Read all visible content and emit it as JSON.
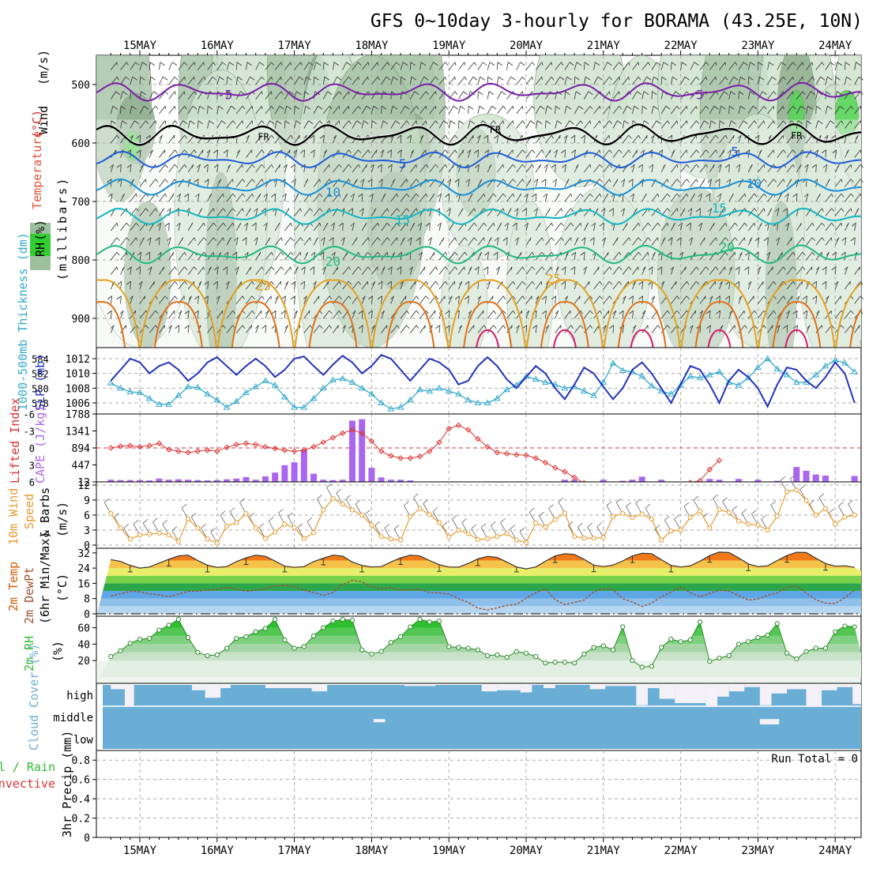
{
  "title": "GFS 0~10day 3-hourly for BORAMA (43.25E, 10N)",
  "colors": {
    "wind": "#4b4b4b",
    "temperature": "#cc3333",
    "rh": "#33cc33",
    "thickness": "#33aacc",
    "slp": "#2233bb",
    "cape": "#aa66ee",
    "lifted": "#dd3333",
    "wind10m": "#e89a2e",
    "temp2m": "#d65a00",
    "dewpt": "#a05030",
    "rh2m": "#33bb33",
    "cloud": "#6aaed6",
    "frz": "#000000"
  },
  "chart_data": [
    {
      "type": "line",
      "panel": "upper-air",
      "x_ticks": [
        "15MAY",
        "16MAY",
        "17MAY",
        "18MAY",
        "19MAY",
        "20MAY",
        "21MAY",
        "22MAY",
        "23MAY",
        "24MAY"
      ],
      "ylim": [
        950,
        450
      ],
      "y_ticks": [
        500,
        600,
        700,
        800,
        900
      ],
      "ylabel_parts": [
        "Wind",
        "(m/s)",
        "Temperature",
        "(°C)",
        "(millibars)",
        "RH",
        "(%)"
      ],
      "freezing_label": "FR",
      "isotherm_labels": [
        {
          "label": "-5",
          "day": 1.1,
          "level": 525
        },
        {
          "label": "-5",
          "day": 7.2,
          "level": 525
        },
        {
          "label": "FR",
          "day": 1.6,
          "level": 595
        },
        {
          "label": "FR",
          "day": 4.6,
          "level": 583
        },
        {
          "label": "FR",
          "day": 8.5,
          "level": 593
        },
        {
          "label": "5",
          "day": 3.4,
          "level": 643
        },
        {
          "label": "5",
          "day": 7.7,
          "level": 622
        },
        {
          "label": "10",
          "day": 2.5,
          "level": 692
        },
        {
          "label": "10",
          "day": 7.95,
          "level": 677
        },
        {
          "label": "15",
          "day": 3.4,
          "level": 739
        },
        {
          "label": "15",
          "day": 7.5,
          "level": 719
        },
        {
          "label": "20",
          "day": 2.5,
          "level": 810
        },
        {
          "label": "20",
          "day": 7.6,
          "level": 786
        },
        {
          "label": "25",
          "day": 1.6,
          "level": 852
        },
        {
          "label": "25",
          "day": 5.35,
          "level": 840
        }
      ],
      "rh_contour_labels": [
        "30",
        "10"
      ]
    },
    {
      "type": "line",
      "panel": "thickness-slp",
      "ylabel_left": "1000-500mb Thickness (dm)",
      "ylabel_right": "SLP (mb)",
      "thickness_ticks": [
        584,
        582,
        580,
        578
      ],
      "slp_ticks": [
        1012,
        1010,
        1008,
        1006
      ],
      "slp_ylim": [
        1004.5,
        1013.5
      ],
      "slp": [
        1009.0,
        1010.5,
        1012.0,
        1011.5,
        1010.0,
        1011.0,
        1011.5,
        1010.5,
        1009.0,
        1010.0,
        1011.5,
        1012.2,
        1011.0,
        1009.8,
        1011.0,
        1012.0,
        1011.0,
        1009.5,
        1010.5,
        1012.0,
        1012.3,
        1011.0,
        1009.8,
        1011.2,
        1012.4,
        1011.5,
        1010.0,
        1011.0,
        1012.5,
        1012.0,
        1010.5,
        1009.0,
        1010.5,
        1012.0,
        1011.5,
        1010.5,
        1008.5,
        1009.0,
        1011.0,
        1012.2,
        1011.0,
        1009.2,
        1008.0,
        1009.5,
        1011.0,
        1010.0,
        1008.0,
        1006.5,
        1008.5,
        1010.8,
        1010.0,
        1008.2,
        1006.5,
        1008.0,
        1010.5,
        1011.5,
        1010.0,
        1008.0,
        1006.0,
        1008.5,
        1011.0,
        1010.5,
        1008.5,
        1006.0,
        1009.0,
        1010.5,
        1009.5,
        1008.0,
        1005.5,
        1008.5,
        1010.8,
        1010.5,
        1009.0,
        1008.0,
        1009.5,
        1011.5,
        1010.0,
        1006.0,
        1007.0,
        1009.5
      ],
      "thickness": [
        1008.7,
        1008.0,
        1007.5,
        1007.4,
        1006.6,
        1005.8,
        1005.8,
        1007.0,
        1008.2,
        1008.1,
        1007.2,
        1006.4,
        1005.4,
        1006.2,
        1007.4,
        1008.2,
        1009.0,
        1008.4,
        1006.8,
        1005.4,
        1005.4,
        1006.6,
        1008.0,
        1009.1,
        1009.3,
        1008.8,
        1008.0,
        1007.2,
        1006.0,
        1005.2,
        1005.4,
        1006.4,
        1007.8,
        1007.6,
        1008.0,
        1007.6,
        1007.2,
        1006.4,
        1006.0,
        1006.0,
        1006.6,
        1007.8,
        1008.4,
        1009.6,
        1009.2,
        1008.8,
        1008.5,
        1008.0,
        1008.2,
        1007.6,
        1007.0,
        1008.8,
        1011.4,
        1010.4,
        1010.2,
        1009.6,
        1008.3,
        1007.6,
        1007.2,
        1008.4,
        1009.6,
        1009.4,
        1009.8,
        1010.2,
        1008.8,
        1008.4,
        1009.4,
        1010.8,
        1012.0,
        1010.6,
        1009.8,
        1008.8,
        1008.8,
        1009.8,
        1011.0,
        1011.8,
        1011.4,
        1010.2,
        1008.4,
        1008.8
      ]
    },
    {
      "type": "bar",
      "panel": "cape-lifted",
      "ylabel_left": "Lifted Index",
      "ylabel_right": "CAPE (J/kg)",
      "li_ticks": [
        "-6",
        "-3",
        "0",
        "3",
        "6"
      ],
      "cape_ticks": [
        1788,
        1341,
        894,
        447,
        12
      ],
      "cape_ylim": [
        0,
        1788
      ],
      "cape": [
        60,
        50,
        50,
        50,
        40,
        90,
        60,
        70,
        60,
        50,
        40,
        50,
        70,
        90,
        130,
        60,
        150,
        250,
        450,
        530,
        870,
        220,
        60,
        50,
        60,
        1650,
        1690,
        380,
        120,
        60,
        60,
        40,
        0,
        0,
        0,
        0,
        0,
        0,
        0,
        0,
        0,
        0,
        0,
        0,
        0,
        0,
        0,
        60,
        60,
        0,
        0,
        60,
        0,
        30,
        60,
        140,
        0,
        60,
        0,
        0,
        0,
        0,
        80,
        60,
        0,
        80,
        0,
        60,
        0,
        30,
        0,
        400,
        300,
        200,
        170,
        0,
        0,
        160,
        80,
        170
      ],
      "lifted_index": [
        0,
        -0.3,
        -0.4,
        -0.2,
        -0.4,
        -0.8,
        0.3,
        0.6,
        0.8,
        0.6,
        0.4,
        0.6,
        -0.1,
        -0.6,
        -0.8,
        -0.6,
        -0.2,
        0.1,
        0.4,
        0.6,
        0.4,
        -0.2,
        -1.0,
        -1.8,
        -2.6,
        -3.2,
        -2.6,
        -1.2,
        0.6,
        1.4,
        1.8,
        1.8,
        1.5,
        0.6,
        -1.0,
        -3.4,
        -4.0,
        -3.2,
        -1.6,
        -0.2,
        0.8,
        1.0,
        1.2,
        1.3,
        1.8,
        2.6,
        3.5,
        4.2,
        5.2,
        6.2,
        null,
        null,
        null,
        null,
        null,
        null,
        null,
        null,
        null,
        null,
        6.1,
        5.8,
        3.8,
        2.2,
        null,
        null,
        null,
        null,
        null,
        null,
        null,
        null,
        null,
        null,
        null,
        null,
        null,
        null,
        null,
        null
      ],
      "cape_trend": [
        {
          "day": 0.0,
          "value": 30
        },
        {
          "day": 1.0,
          "value": 80
        },
        {
          "day": 2.0,
          "value": 100
        },
        {
          "day": 2.6,
          "value": 400
        },
        {
          "day": 3.2,
          "value": 1400
        },
        {
          "day": 3.9,
          "value": 500
        },
        {
          "day": 4.5,
          "value": 80
        },
        {
          "day": 5.0,
          "value": 10
        }
      ]
    },
    {
      "type": "line",
      "panel": "wind10m",
      "ylabel": "10m Wind Speed & Barbs (m/s)",
      "y_ticks": [
        12,
        9,
        6,
        3,
        0
      ],
      "ylim": [
        0,
        12
      ],
      "values": [
        6.3,
        3.4,
        1.2,
        2.0,
        2.2,
        2.4,
        2.0,
        0.7,
        5.2,
        3.4,
        1.2,
        0.4,
        3.8,
        4.5,
        6.3,
        3.4,
        1.3,
        2.6,
        4.2,
        3.5,
        1.3,
        2.5,
        7.0,
        9.3,
        8.2,
        7.0,
        6.0,
        4.0,
        1.7,
        1.2,
        1.0,
        5.7,
        7.3,
        6.1,
        4.5,
        1.6,
        3.0,
        2.3,
        1.1,
        1.3,
        1.7,
        2.3,
        1.0,
        0.5,
        4.4,
        3.6,
        5.1,
        6.4,
        1.7,
        1.4,
        1.4,
        1.5,
        5.7,
        6.3,
        5.5,
        6.2,
        5.2,
        1.0,
        2.8,
        3.0,
        5.5,
        6.8,
        3.4,
        7.1,
        6.5,
        4.8,
        4.2,
        4.0,
        3.0,
        5.8,
        10.7,
        11.0,
        8.9,
        6.0,
        7.3,
        4.2,
        5.6,
        6.0,
        5.5,
        5.0
      ]
    },
    {
      "type": "area",
      "panel": "temp2m",
      "ylabel": "2m Temp 2m DewPt (6hr Min/Max) (°C)",
      "y_ticks": [
        32,
        24,
        16,
        8,
        0
      ],
      "ylim": [
        0,
        34
      ],
      "temp": [
        28.5,
        27.5,
        25.4,
        24.0,
        24.6,
        26.6,
        28.6,
        30.4,
        30.8,
        28.0,
        25.5,
        24.4,
        24.8,
        27.4,
        29.4,
        30.8,
        30.2,
        27.7,
        25.0,
        24.4,
        24.8,
        27.4,
        29.2,
        30.8,
        30.3,
        27.2,
        25.4,
        24.6,
        24.8,
        27.2,
        29.4,
        30.8,
        30.4,
        28.0,
        25.8,
        24.6,
        24.5,
        26.4,
        28.8,
        30.2,
        29.6,
        27.2,
        24.6,
        23.6,
        24.6,
        27.6,
        30.4,
        31.6,
        31.2,
        28.6,
        25.6,
        24.8,
        25.6,
        27.8,
        30.4,
        31.8,
        31.6,
        28.4,
        25.4,
        24.6,
        25.2,
        27.6,
        30.6,
        32.4,
        32.2,
        29.4,
        26.2,
        24.8,
        25.2,
        28.0,
        30.6,
        32.3,
        32.2,
        29.2,
        26.4,
        25.0,
        25.2,
        24.4,
        22.6,
        27.6
      ],
      "dewpt": [
        9.4,
        10.5,
        11.8,
        11.6,
        10.5,
        10.0,
        9.0,
        10.4,
        11.8,
        12.0,
        12.4,
        12.8,
        14.0,
        13.0,
        11.8,
        12.4,
        13.2,
        14.6,
        15.0,
        14.4,
        12.4,
        11.2,
        9.6,
        11.2,
        15.4,
        17.6,
        16.8,
        14.4,
        13.0,
        13.8,
        12.4,
        12.6,
        13.0,
        11.2,
        11.0,
        10.4,
        8.0,
        6.0,
        3.0,
        2.0,
        3.2,
        4.4,
        5.0,
        8.2,
        11.2,
        13.0,
        7.5,
        4.8,
        6.0,
        7.2,
        11.6,
        13.2,
        12.6,
        8.0,
        6.2,
        3.8,
        5.6,
        9.0,
        11.4,
        14.0,
        11.0,
        9.0,
        10.8,
        12.4,
        12.0,
        9.6,
        7.2,
        7.8,
        9.8,
        11.0,
        14.0,
        14.6,
        11.0,
        7.4,
        5.6,
        5.4,
        8.4,
        12.4,
        14.2,
        13.6
      ]
    },
    {
      "type": "area",
      "panel": "rh2m",
      "ylabel": "2m RH (%)",
      "y_ticks": [
        60,
        40,
        20
      ],
      "ylim": [
        0,
        72
      ],
      "values": [
        25,
        32,
        41,
        46,
        47,
        57,
        63,
        70,
        48,
        30,
        26,
        27,
        35,
        47,
        49,
        55,
        59,
        70,
        45,
        35,
        37,
        50,
        60,
        68,
        70,
        69,
        33,
        28,
        31,
        42,
        49,
        61,
        70,
        67,
        68,
        37,
        36,
        35,
        33,
        26,
        27,
        24,
        31,
        29,
        25,
        17,
        18,
        18,
        17,
        28,
        36,
        38,
        33,
        61,
        20,
        12,
        13,
        36,
        46,
        43,
        45,
        67,
        19,
        23,
        26,
        40,
        43,
        48,
        51,
        65,
        29,
        22,
        31,
        35,
        35,
        55,
        62,
        61,
        30,
        25
      ]
    },
    {
      "type": "bar",
      "panel": "cloud-cover",
      "ylabel": "Cloud Cover (%)",
      "levels": [
        "high",
        "middle",
        "low"
      ],
      "high_clear_fraction": [
        0.9,
        1,
        0,
        0,
        0,
        0,
        0,
        0,
        0,
        0,
        0,
        0,
        0,
        0,
        0,
        0,
        0,
        0,
        0,
        0,
        0,
        0,
        0,
        0,
        0,
        0,
        0,
        0,
        0,
        0,
        0,
        0,
        0,
        0,
        0,
        0,
        0,
        0,
        0,
        0,
        0,
        0,
        0,
        0,
        0,
        0,
        0,
        0,
        0,
        0,
        0,
        0,
        0,
        0,
        0,
        0,
        0,
        0,
        0,
        0,
        0,
        0,
        0,
        0,
        0,
        0,
        0,
        0,
        0,
        0,
        0,
        0,
        0,
        0,
        0,
        0,
        0,
        0,
        0,
        0
      ],
      "high_gap_segments": [
        {
          "day_start": 0.0,
          "day_end": 0.18,
          "fraction": 0.2
        },
        {
          "day_start": 0.18,
          "day_end": 0.3,
          "fraction": 1.0
        },
        {
          "day_start": 1.05,
          "day_end": 1.22,
          "fraction": 0.25
        },
        {
          "day_start": 1.22,
          "day_end": 1.42,
          "fraction": 0.6
        },
        {
          "day_start": 1.42,
          "day_end": 1.55,
          "fraction": 0.15
        },
        {
          "day_start": 2.0,
          "day_end": 2.6,
          "fraction": 0.15
        },
        {
          "day_start": 2.6,
          "day_end": 2.8,
          "fraction": 0.3
        },
        {
          "day_start": 3.8,
          "day_end": 4.2,
          "fraction": 0.05
        },
        {
          "day_start": 4.8,
          "day_end": 5.0,
          "fraction": 0.3
        },
        {
          "day_start": 5.0,
          "day_end": 5.3,
          "fraction": 0.25
        },
        {
          "day_start": 5.3,
          "day_end": 5.45,
          "fraction": 0.35
        },
        {
          "day_start": 5.6,
          "day_end": 5.75,
          "fraction": 0.15
        },
        {
          "day_start": 6.2,
          "day_end": 6.4,
          "fraction": 0.2
        },
        {
          "day_start": 6.4,
          "day_end": 6.8,
          "fraction": 0.05
        },
        {
          "day_start": 6.8,
          "day_end": 6.95,
          "fraction": 0.95
        },
        {
          "day_start": 6.95,
          "day_end": 7.1,
          "fraction": 0.15
        },
        {
          "day_start": 7.1,
          "day_end": 7.3,
          "fraction": 0.65
        },
        {
          "day_start": 7.3,
          "day_end": 7.7,
          "fraction": 0.85
        },
        {
          "day_start": 7.7,
          "day_end": 7.85,
          "fraction": 1.0
        },
        {
          "day_start": 7.85,
          "day_end": 8.0,
          "fraction": 0.55
        },
        {
          "day_start": 8.0,
          "day_end": 8.2,
          "fraction": 0.3
        },
        {
          "day_start": 8.2,
          "day_end": 8.4,
          "fraction": 0.1
        },
        {
          "day_start": 8.4,
          "day_end": 8.55,
          "fraction": 0.95
        },
        {
          "day_start": 8.55,
          "day_end": 8.75,
          "fraction": 0.4
        },
        {
          "day_start": 8.75,
          "day_end": 9.0,
          "fraction": 0.2
        },
        {
          "day_start": 9.0,
          "day_end": 9.2,
          "fraction": 1.0
        },
        {
          "day_start": 9.2,
          "day_end": 9.4,
          "fraction": 0.25
        },
        {
          "day_start": 9.4,
          "day_end": 9.6,
          "fraction": 0.1
        },
        {
          "day_start": 9.6,
          "day_end": 10.0,
          "fraction": 0.9
        }
      ],
      "middle_gap_segments": [
        {
          "day_start": 3.4,
          "day_end": 3.55,
          "fraction": 0.15
        },
        {
          "day_start": 8.4,
          "day_end": 8.65,
          "fraction": 0.25
        }
      ]
    },
    {
      "type": "bar",
      "panel": "precip",
      "ylabel_parts": [
        "Total / Rain",
        "Convective",
        "3hr Precip (mm)"
      ],
      "y_ticks": [
        "0.8",
        "0.6",
        "0.4",
        "0.2",
        "0"
      ],
      "ylim": [
        0,
        0.9
      ],
      "run_total": "Run Total = 0",
      "values": []
    }
  ]
}
